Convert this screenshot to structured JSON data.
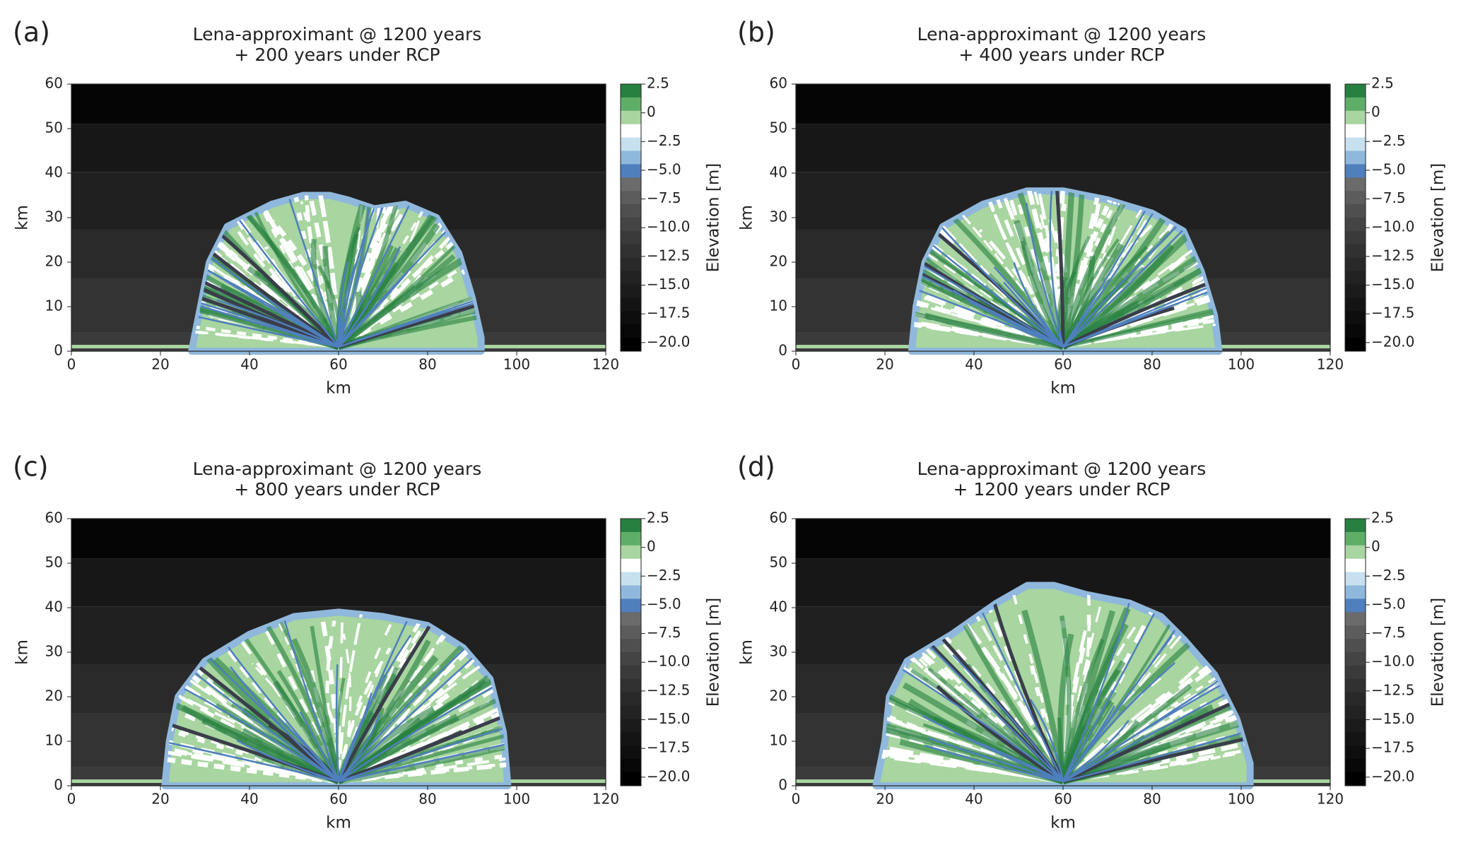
{
  "chart_data": [
    {
      "type": "contour",
      "panel_label": "(a)",
      "title": [
        "Lena-approximant @ 1200 years",
        "+ 200 years under RCP"
      ],
      "xlabel": "km",
      "ylabel": "km",
      "xlim": [
        0,
        120
      ],
      "xticks": [
        0,
        20,
        40,
        60,
        80,
        100,
        120
      ],
      "ylim": [
        0,
        60
      ],
      "yticks": [
        0,
        10,
        20,
        30,
        40,
        50,
        60
      ],
      "shoreline": {
        "x": [
          27,
          29,
          31,
          35,
          45,
          52,
          58,
          62,
          68,
          75,
          82,
          87,
          90,
          92,
          92
        ],
        "y": [
          0,
          10,
          20,
          28,
          33,
          35,
          35,
          34,
          32,
          33,
          30,
          22,
          12,
          3,
          0
        ]
      },
      "colorbar": {
        "label": "Elevation [m]",
        "lim": [
          -20.75,
          2.5
        ],
        "ticks": [
          2.5,
          0,
          {
            "value": -2.5,
            "label": "−2.5"
          },
          {
            "value": -5,
            "label": "−5.0"
          },
          {
            "value": -7.5,
            "label": "−7.5"
          },
          {
            "value": -10,
            "label": "−10.0"
          },
          {
            "value": -12.5,
            "label": "−12.5"
          },
          {
            "value": -15,
            "label": "−15.0"
          },
          {
            "value": -17.5,
            "label": "−17.5"
          },
          {
            "value": -20,
            "label": "−20.0"
          }
        ],
        "colors": [
          "#27803f",
          "#5fae68",
          "#a8d5a0",
          "#ffffff",
          "#c6e0ef",
          "#8fb8dc",
          "#4f7fbd",
          "#6b6b6b",
          "#5c5c5c",
          "#4f4f4f",
          "#444444",
          "#3a3a3a",
          "#313131",
          "#292929",
          "#222222",
          "#1b1b1b",
          "#141414",
          "#0e0e0e",
          "#080808",
          "#000000"
        ]
      }
    },
    {
      "type": "contour",
      "panel_label": "(b)",
      "title": [
        "Lena-approximant @ 1200 years",
        "+ 400 years under RCP"
      ],
      "xlabel": "km",
      "ylabel": "km",
      "xlim": [
        0,
        120
      ],
      "xticks": [
        0,
        20,
        40,
        60,
        80,
        100,
        120
      ],
      "ylim": [
        0,
        60
      ],
      "yticks": [
        0,
        10,
        20,
        30,
        40,
        50,
        60
      ],
      "shoreline": {
        "x": [
          26,
          27,
          29,
          33,
          42,
          52,
          60,
          70,
          80,
          87,
          91,
          94,
          95
        ],
        "y": [
          0,
          10,
          20,
          28,
          33,
          36,
          36,
          34,
          31,
          27,
          18,
          8,
          0
        ]
      },
      "colorbar": {
        "label": "Elevation [m]",
        "lim": [
          -20.75,
          2.5
        ],
        "ticks": [
          2.5,
          0,
          {
            "value": -2.5,
            "label": "−2.5"
          },
          {
            "value": -5,
            "label": "−5.0"
          },
          {
            "value": -7.5,
            "label": "−7.5"
          },
          {
            "value": -10,
            "label": "−10.0"
          },
          {
            "value": -12.5,
            "label": "−12.5"
          },
          {
            "value": -15,
            "label": "−15.0"
          },
          {
            "value": -17.5,
            "label": "−17.5"
          },
          {
            "value": -20,
            "label": "−20.0"
          }
        ],
        "colors": [
          "#27803f",
          "#5fae68",
          "#a8d5a0",
          "#ffffff",
          "#c6e0ef",
          "#8fb8dc",
          "#4f7fbd",
          "#6b6b6b",
          "#5c5c5c",
          "#4f4f4f",
          "#444444",
          "#3a3a3a",
          "#313131",
          "#292929",
          "#222222",
          "#1b1b1b",
          "#141414",
          "#0e0e0e",
          "#080808",
          "#000000"
        ]
      }
    },
    {
      "type": "contour",
      "panel_label": "(c)",
      "title": [
        "Lena-approximant @ 1200 years",
        "+ 800 years under RCP"
      ],
      "xlabel": "km",
      "ylabel": "km",
      "xlim": [
        0,
        120
      ],
      "xticks": [
        0,
        20,
        40,
        60,
        80,
        100,
        120
      ],
      "ylim": [
        0,
        60
      ],
      "yticks": [
        0,
        10,
        20,
        30,
        40,
        50,
        60
      ],
      "shoreline": {
        "x": [
          21,
          22,
          24,
          30,
          40,
          50,
          60,
          70,
          80,
          88,
          94,
          97,
          98
        ],
        "y": [
          0,
          10,
          20,
          28,
          34,
          38,
          39,
          38,
          36,
          31,
          24,
          12,
          0
        ]
      },
      "colorbar": {
        "label": "Elevation [m]",
        "lim": [
          -20.75,
          2.5
        ],
        "ticks": [
          2.5,
          0,
          {
            "value": -2.5,
            "label": "−2.5"
          },
          {
            "value": -5,
            "label": "−5.0"
          },
          {
            "value": -7.5,
            "label": "−7.5"
          },
          {
            "value": -10,
            "label": "−10.0"
          },
          {
            "value": -12.5,
            "label": "−12.5"
          },
          {
            "value": -15,
            "label": "−15.0"
          },
          {
            "value": -17.5,
            "label": "−17.5"
          },
          {
            "value": -20,
            "label": "−20.0"
          }
        ],
        "colors": [
          "#27803f",
          "#5fae68",
          "#a8d5a0",
          "#ffffff",
          "#c6e0ef",
          "#8fb8dc",
          "#4f7fbd",
          "#6b6b6b",
          "#5c5c5c",
          "#4f4f4f",
          "#444444",
          "#3a3a3a",
          "#313131",
          "#292929",
          "#222222",
          "#1b1b1b",
          "#141414",
          "#0e0e0e",
          "#080808",
          "#000000"
        ]
      }
    },
    {
      "type": "contour",
      "panel_label": "(d)",
      "title": [
        "Lena-approximant @ 1200 years",
        "+ 1200 years under RCP"
      ],
      "xlabel": "km",
      "ylabel": "km",
      "xlim": [
        0,
        120
      ],
      "xticks": [
        0,
        20,
        40,
        60,
        80,
        100,
        120
      ],
      "ylim": [
        0,
        60
      ],
      "yticks": [
        0,
        10,
        20,
        30,
        40,
        50,
        60
      ],
      "shoreline": {
        "x": [
          18,
          20,
          21,
          25,
          35,
          45,
          52,
          58,
          65,
          75,
          82,
          87,
          94,
          99,
          102,
          102
        ],
        "y": [
          0,
          10,
          20,
          28,
          34,
          41,
          45,
          45,
          43,
          41,
          38,
          33,
          25,
          15,
          5,
          0
        ]
      },
      "colorbar": {
        "label": "Elevation [m]",
        "lim": [
          -20.75,
          2.5
        ],
        "ticks": [
          2.5,
          0,
          {
            "value": -2.5,
            "label": "−2.5"
          },
          {
            "value": -5,
            "label": "−5.0"
          },
          {
            "value": -7.5,
            "label": "−7.5"
          },
          {
            "value": -10,
            "label": "−10.0"
          },
          {
            "value": -12.5,
            "label": "−12.5"
          },
          {
            "value": -15,
            "label": "−15.0"
          },
          {
            "value": -17.5,
            "label": "−17.5"
          },
          {
            "value": -20,
            "label": "−20.0"
          }
        ],
        "colors": [
          "#27803f",
          "#5fae68",
          "#a8d5a0",
          "#ffffff",
          "#c6e0ef",
          "#8fb8dc",
          "#4f7fbd",
          "#6b6b6b",
          "#5c5c5c",
          "#4f4f4f",
          "#444444",
          "#3a3a3a",
          "#313131",
          "#292929",
          "#222222",
          "#1b1b1b",
          "#141414",
          "#0e0e0e",
          "#080808",
          "#000000"
        ]
      }
    }
  ]
}
